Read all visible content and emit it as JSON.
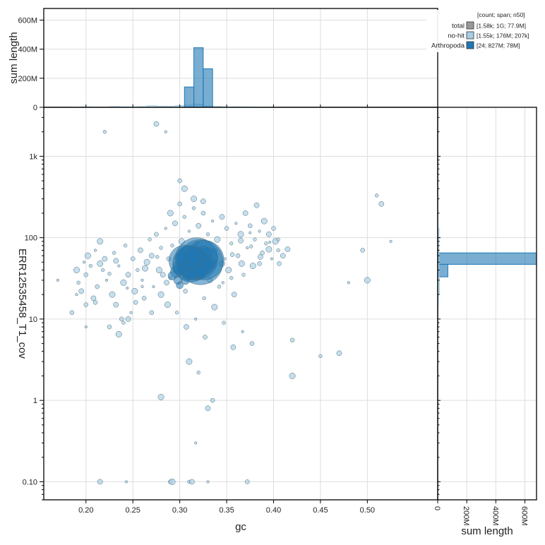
{
  "chart_data": {
    "type": "scatter",
    "xlabel": "gc",
    "ylabel": "ERR12535458_T1_cov",
    "xlim": [
      0.155,
      0.575
    ],
    "ylim": [
      0.06,
      4000
    ],
    "y_scale": "log",
    "x_ticks": [
      0.2,
      0.25,
      0.3,
      0.35,
      0.4,
      0.45,
      0.5
    ],
    "x_tick_labels": [
      "0.20",
      "0.25",
      "0.30",
      "0.35",
      "0.40",
      "0.45",
      "0.50"
    ],
    "y_ticks": [
      0.1,
      1,
      10,
      100,
      1000
    ],
    "y_tick_labels": [
      "0.10",
      "1",
      "10",
      "100",
      "1k"
    ],
    "grid": true,
    "legend": {
      "placement": "top-right",
      "header": "[count; span; n50]",
      "entries": [
        {
          "name": "total",
          "info": "[1.58k; 1G; 77.9M]",
          "color": "#999999"
        },
        {
          "name": "no-hit",
          "info": "[1.55k; 176M; 207k]",
          "color": "#a6cee3"
        },
        {
          "name": "Arthropoda",
          "info": "[24; 827M; 78M]",
          "color": "#1f78b4"
        }
      ]
    },
    "series": [
      {
        "name": "no-hit",
        "color": "#a6cee3",
        "points": [
          [
            0.17,
            30
          ],
          [
            0.185,
            12
          ],
          [
            0.19,
            40
          ],
          [
            0.192,
            28
          ],
          [
            0.195,
            22
          ],
          [
            0.198,
            50
          ],
          [
            0.2,
            35
          ],
          [
            0.202,
            60
          ],
          [
            0.205,
            45
          ],
          [
            0.208,
            18
          ],
          [
            0.21,
            70
          ],
          [
            0.212,
            25
          ],
          [
            0.215,
            90
          ],
          [
            0.218,
            40
          ],
          [
            0.22,
            55
          ],
          [
            0.222,
            30
          ],
          [
            0.225,
            8
          ],
          [
            0.228,
            20
          ],
          [
            0.23,
            65
          ],
          [
            0.232,
            15
          ],
          [
            0.235,
            45
          ],
          [
            0.238,
            10
          ],
          [
            0.24,
            28
          ],
          [
            0.242,
            80
          ],
          [
            0.245,
            35
          ],
          [
            0.248,
            12
          ],
          [
            0.25,
            55
          ],
          [
            0.252,
            22
          ],
          [
            0.255,
            40
          ],
          [
            0.258,
            70
          ],
          [
            0.26,
            30
          ],
          [
            0.262,
            18
          ],
          [
            0.265,
            50
          ],
          [
            0.268,
            95
          ],
          [
            0.27,
            60
          ],
          [
            0.272,
            25
          ],
          [
            0.275,
            110
          ],
          [
            0.278,
            40
          ],
          [
            0.28,
            75
          ],
          [
            0.282,
            35
          ],
          [
            0.285,
            130
          ],
          [
            0.288,
            55
          ],
          [
            0.29,
            200
          ],
          [
            0.292,
            80
          ],
          [
            0.295,
            150
          ],
          [
            0.298,
            45
          ],
          [
            0.3,
            260
          ],
          [
            0.302,
            90
          ],
          [
            0.305,
            180
          ],
          [
            0.308,
            65
          ],
          [
            0.31,
            120
          ],
          [
            0.312,
            40
          ],
          [
            0.315,
            300
          ],
          [
            0.318,
            85
          ],
          [
            0.32,
            140
          ],
          [
            0.322,
            60
          ],
          [
            0.325,
            200
          ],
          [
            0.328,
            45
          ],
          [
            0.33,
            110
          ],
          [
            0.332,
            30
          ],
          [
            0.335,
            160
          ],
          [
            0.338,
            70
          ],
          [
            0.34,
            95
          ],
          [
            0.342,
            25
          ],
          [
            0.345,
            180
          ],
          [
            0.348,
            55
          ],
          [
            0.35,
            130
          ],
          [
            0.352,
            40
          ],
          [
            0.355,
            85
          ],
          [
            0.358,
            20
          ],
          [
            0.36,
            150
          ],
          [
            0.362,
            60
          ],
          [
            0.365,
            110
          ],
          [
            0.368,
            35
          ],
          [
            0.37,
            200
          ],
          [
            0.372,
            75
          ],
          [
            0.375,
            140
          ],
          [
            0.378,
            45
          ],
          [
            0.38,
            95
          ],
          [
            0.382,
            250
          ],
          [
            0.385,
            120
          ],
          [
            0.388,
            65
          ],
          [
            0.39,
            160
          ],
          [
            0.392,
            85
          ],
          [
            0.395,
            110
          ],
          [
            0.398,
            55
          ],
          [
            0.4,
            130
          ],
          [
            0.402,
            90
          ],
          [
            0.405,
            70
          ],
          [
            0.41,
            60
          ],
          [
            0.19,
            20
          ],
          [
            0.2,
            15
          ],
          [
            0.215,
            48
          ],
          [
            0.225,
            36
          ],
          [
            0.232,
            52
          ],
          [
            0.244,
            24
          ],
          [
            0.253,
            16
          ],
          [
            0.263,
            42
          ],
          [
            0.276,
            58
          ],
          [
            0.286,
            28
          ],
          [
            0.296,
            38
          ],
          [
            0.306,
            22
          ],
          [
            0.316,
            48
          ],
          [
            0.326,
            18
          ],
          [
            0.336,
            44
          ],
          [
            0.346,
            28
          ],
          [
            0.356,
            62
          ],
          [
            0.366,
            48
          ],
          [
            0.376,
            78
          ],
          [
            0.386,
            58
          ],
          [
            0.396,
            88
          ],
          [
            0.406,
            48
          ],
          [
            0.287,
            15
          ],
          [
            0.297,
            12
          ],
          [
            0.307,
            8
          ],
          [
            0.317,
            10
          ],
          [
            0.327,
            6
          ],
          [
            0.337,
            14
          ],
          [
            0.347,
            9
          ],
          [
            0.357,
            4.5
          ],
          [
            0.367,
            7
          ],
          [
            0.377,
            5
          ],
          [
            0.31,
            3
          ],
          [
            0.32,
            2.2
          ],
          [
            0.33,
            0.8
          ],
          [
            0.317,
            0.3
          ],
          [
            0.42,
            5.5
          ],
          [
            0.42,
            2
          ],
          [
            0.45,
            3.5
          ],
          [
            0.47,
            3.8
          ],
          [
            0.48,
            28
          ],
          [
            0.495,
            70
          ],
          [
            0.5,
            30
          ],
          [
            0.51,
            330
          ],
          [
            0.515,
            260
          ],
          [
            0.525,
            90
          ],
          [
            0.335,
            1
          ],
          [
            0.28,
            1.1
          ],
          [
            0.22,
            2000
          ],
          [
            0.275,
            2500
          ],
          [
            0.285,
            2000
          ],
          [
            0.3,
            500
          ],
          [
            0.305,
            400
          ],
          [
            0.315,
            230
          ],
          [
            0.325,
            280
          ],
          [
            0.2,
            8
          ],
          [
            0.21,
            16
          ],
          [
            0.235,
            6.5
          ],
          [
            0.24,
            9
          ],
          [
            0.245,
            10
          ],
          [
            0.26,
            25
          ],
          [
            0.27,
            12
          ],
          [
            0.28,
            20
          ],
          [
            0.29,
            32
          ],
          [
            0.215,
            0.1
          ],
          [
            0.243,
            0.1
          ],
          [
            0.29,
            0.1
          ],
          [
            0.292,
            0.1
          ],
          [
            0.31,
            0.1
          ],
          [
            0.313,
            0.1
          ],
          [
            0.33,
            0.1
          ],
          [
            0.372,
            0.1
          ],
          [
            0.345,
            48
          ],
          [
            0.355,
            32
          ],
          [
            0.365,
            92
          ],
          [
            0.375,
            115
          ],
          [
            0.385,
            48
          ],
          [
            0.395,
            72
          ],
          [
            0.405,
            95
          ],
          [
            0.415,
            72
          ]
        ]
      },
      {
        "name": "Arthropoda",
        "color": "#1f78b4",
        "points": [
          [
            0.305,
            52,
            22
          ],
          [
            0.312,
            48,
            26
          ],
          [
            0.318,
            55,
            30
          ],
          [
            0.322,
            50,
            32
          ],
          [
            0.326,
            53,
            28
          ],
          [
            0.315,
            45,
            20
          ],
          [
            0.308,
            40,
            14
          ],
          [
            0.3,
            43,
            10
          ],
          [
            0.296,
            38,
            8
          ],
          [
            0.33,
            57,
            14
          ],
          [
            0.325,
            62,
            12
          ],
          [
            0.32,
            46,
            18
          ],
          [
            0.31,
            58,
            16
          ],
          [
            0.317,
            60,
            12
          ],
          [
            0.302,
            56,
            9
          ],
          [
            0.328,
            44,
            10
          ],
          [
            0.292,
            34,
            6
          ],
          [
            0.298,
            30,
            6
          ],
          [
            0.333,
            48,
            7
          ],
          [
            0.323,
            38,
            8
          ],
          [
            0.313,
            35,
            7
          ],
          [
            0.306,
            30,
            6
          ],
          [
            0.3,
            26,
            5
          ],
          [
            0.32,
            65,
            6
          ]
        ]
      }
    ],
    "top_histogram": {
      "ylabel": "sum length",
      "y_ticks": [
        0,
        200000000,
        400000000,
        600000000
      ],
      "y_tick_labels": [
        "0",
        "200M",
        "400M",
        "600M"
      ],
      "ylim": [
        0,
        680000000
      ],
      "bin_edges": [
        0.155,
        0.165,
        0.175,
        0.185,
        0.195,
        0.205,
        0.215,
        0.225,
        0.235,
        0.245,
        0.255,
        0.265,
        0.275,
        0.285,
        0.295,
        0.305,
        0.315,
        0.325,
        0.335,
        0.345,
        0.355,
        0.365,
        0.375,
        0.385,
        0.395,
        0.405,
        0.415,
        0.425,
        0.435,
        0.445,
        0.455,
        0.465,
        0.475,
        0.485,
        0.495,
        0.505,
        0.515,
        0.525,
        0.535,
        0.545,
        0.555,
        0.565,
        0.575
      ],
      "arthropoda": [
        0,
        0,
        0,
        0,
        0,
        0,
        0,
        0,
        0,
        0,
        0,
        0,
        0,
        0,
        0,
        140000000,
        410000000,
        265000000,
        0,
        0,
        0,
        0,
        0,
        0,
        0,
        0,
        0,
        0,
        0,
        0,
        0,
        0,
        0,
        0,
        0,
        0,
        0,
        0,
        0,
        0,
        0,
        0
      ],
      "no_hit": [
        0,
        0,
        0,
        2000000,
        4000000,
        1000000,
        0,
        6000000,
        4000000,
        3000000,
        5000000,
        11000000,
        8000000,
        7000000,
        12000000,
        15000000,
        22000000,
        9000000,
        6000000,
        3000000,
        4000000,
        3000000,
        2000000,
        2000000,
        1000000,
        0,
        0,
        0,
        0,
        0,
        0,
        0,
        0,
        0,
        0,
        0,
        0,
        0,
        0,
        0,
        0,
        0
      ]
    },
    "right_histogram": {
      "xlabel": "sum length",
      "x_ticks": [
        0,
        200000000,
        400000000,
        600000000
      ],
      "x_tick_labels": [
        "0",
        "200M",
        "400M",
        "600M"
      ],
      "xlim": [
        0,
        680000000
      ],
      "bins": [
        {
          "y0": 33,
          "y1": 47,
          "arthropoda": 70000000
        },
        {
          "y0": 47,
          "y1": 65,
          "arthropoda": 680000000
        },
        {
          "y0": 14,
          "y1": 20,
          "no_hit": 5000000
        },
        {
          "y0": 20,
          "y1": 33,
          "no_hit": 12000000
        },
        {
          "y0": 33,
          "y1": 65,
          "no_hit": 8000000
        },
        {
          "y0": 65,
          "y1": 130,
          "no_hit": 9000000
        },
        {
          "y0": 130,
          "y1": 180,
          "no_hit": 3000000
        }
      ]
    }
  }
}
